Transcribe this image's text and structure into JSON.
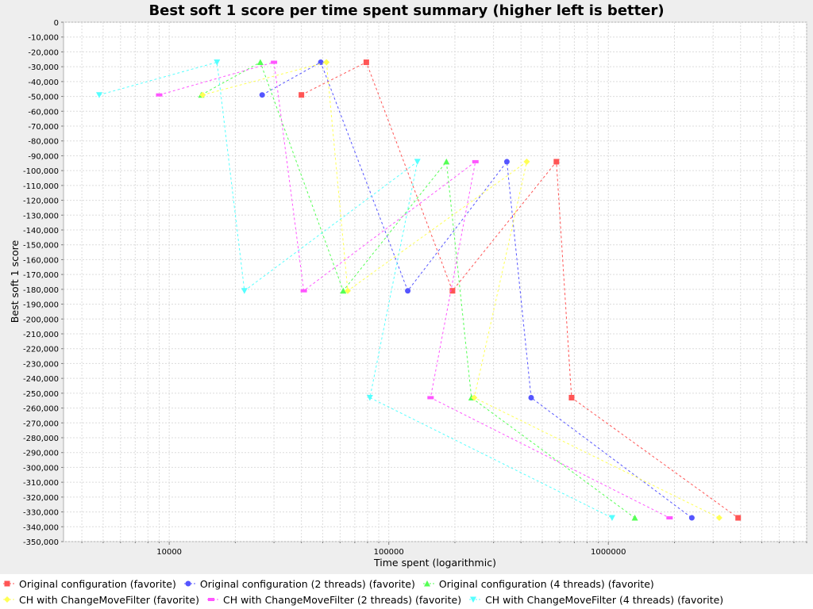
{
  "chart_data": {
    "type": "scatter",
    "title": "Best soft 1 score per time spent summary (higher left is better)",
    "xlabel": "Time spent (logarithmic)",
    "ylabel": "Best soft 1 score",
    "x_scale": "log",
    "xlim": [
      3300,
      8000000
    ],
    "ylim": [
      -350000,
      0
    ],
    "x_tick_labels": [
      "10000",
      "100000",
      "1000000"
    ],
    "x_tick_values": [
      10000,
      100000,
      1000000
    ],
    "y_tick_values": [
      0,
      -10000,
      -20000,
      -30000,
      -40000,
      -50000,
      -60000,
      -70000,
      -80000,
      -90000,
      -100000,
      -110000,
      -120000,
      -130000,
      -140000,
      -150000,
      -160000,
      -170000,
      -180000,
      -190000,
      -200000,
      -210000,
      -220000,
      -230000,
      -240000,
      -250000,
      -260000,
      -270000,
      -280000,
      -290000,
      -300000,
      -310000,
      -320000,
      -330000,
      -340000,
      -350000
    ],
    "y_tick_labels": [
      "0",
      "-10,000",
      "-20,000",
      "-30,000",
      "-40,000",
      "-50,000",
      "-60,000",
      "-70,000",
      "-80,000",
      "-90,000",
      "-100,000",
      "-110,000",
      "-120,000",
      "-130,000",
      "-140,000",
      "-150,000",
      "-160,000",
      "-170,000",
      "-180,000",
      "-190,000",
      "-200,000",
      "-210,000",
      "-220,000",
      "-230,000",
      "-240,000",
      "-250,000",
      "-260,000",
      "-270,000",
      "-280,000",
      "-290,000",
      "-300,000",
      "-310,000",
      "-320,000",
      "-330,000",
      "-340,000",
      "-350,000"
    ],
    "grid": true,
    "legend_placement": "bottom",
    "series": [
      {
        "name": "Original configuration (favorite)",
        "color": "#ff5555",
        "marker": "square",
        "x": [
          40000,
          79000,
          195000,
          580000,
          680000,
          3900000
        ],
        "y": [
          -49000,
          -27000,
          -181000,
          -94000,
          -253000,
          -334000
        ]
      },
      {
        "name": "Original configuration (2 threads) (favorite)",
        "color": "#5555ff",
        "marker": "circle",
        "x": [
          26500,
          49000,
          122000,
          345000,
          445000,
          2400000
        ],
        "y": [
          -49000,
          -27000,
          -181000,
          -94000,
          -253000,
          -334000
        ]
      },
      {
        "name": "Original configuration (4 threads) (favorite)",
        "color": "#55ff55",
        "marker": "triangle-up",
        "x": [
          14000,
          26000,
          62000,
          183000,
          238000,
          1320000
        ],
        "y": [
          -49000,
          -27000,
          -181000,
          -94000,
          -253000,
          -334000
        ]
      },
      {
        "name": "CH with ChangeMoveFilter (favorite)",
        "color": "#ffff55",
        "marker": "diamond",
        "x": [
          14200,
          52000,
          65000,
          425000,
          245000,
          3200000
        ],
        "y": [
          -49000,
          -27000,
          -181000,
          -94000,
          -253000,
          -334000
        ]
      },
      {
        "name": "CH with ChangeMoveFilter (2 threads) (favorite)",
        "color": "#ff55ff",
        "marker": "rect",
        "x": [
          9000,
          30000,
          41000,
          248000,
          155000,
          1900000
        ],
        "y": [
          -49000,
          -27000,
          -181000,
          -94000,
          -253000,
          -334000
        ]
      },
      {
        "name": "CH with ChangeMoveFilter (4 threads) (favorite)",
        "color": "#55ffff",
        "marker": "triangle-down",
        "x": [
          4800,
          16500,
          22000,
          135000,
          82000,
          1040000
        ],
        "y": [
          -49000,
          -27000,
          -181000,
          -94000,
          -253000,
          -334000
        ]
      }
    ]
  }
}
